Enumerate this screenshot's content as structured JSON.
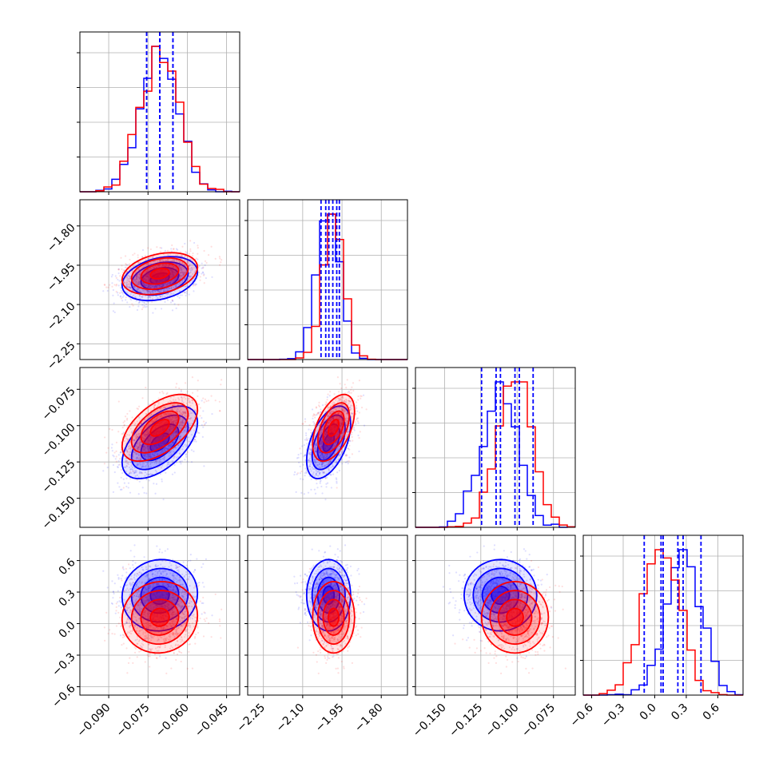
{
  "colors": {
    "series_a": "#0000ff",
    "series_b": "#ff0000",
    "grid": "#b0b0b0",
    "frame": "#000000"
  },
  "chart_data": {
    "type": "corner",
    "title": "",
    "parameters": [
      "",
      "",
      "",
      ""
    ],
    "ranges": [
      [
        -0.101,
        -0.04
      ],
      [
        -2.31,
        -1.7
      ],
      [
        -0.17,
        -0.06
      ],
      [
        -0.68,
        0.84
      ]
    ],
    "x_ticks": [
      {
        "values": [
          -0.09,
          -0.075,
          -0.06,
          -0.045
        ],
        "labels": [
          "−0.090",
          "−0.075",
          "−0.060",
          "−0.045"
        ]
      },
      {
        "values": [
          -2.25,
          -2.1,
          -1.95,
          -1.8
        ],
        "labels": [
          "−2.25",
          "−2.10",
          "−1.95",
          "−1.80"
        ]
      },
      {
        "values": [
          -0.15,
          -0.125,
          -0.1,
          -0.075
        ],
        "labels": [
          "−0.150",
          "−0.125",
          "−0.100",
          "−0.075"
        ]
      },
      {
        "values": [
          -0.6,
          -0.3,
          0.0,
          0.3,
          0.6
        ],
        "labels": [
          "−0.6",
          "−0.3",
          "0.0",
          "0.3",
          "0.6"
        ]
      }
    ],
    "y_ticks": [
      null,
      {
        "values": [
          -1.8,
          -1.95,
          -2.1,
          -2.25
        ],
        "labels": [
          "−1.80",
          "−1.95",
          "−2.10",
          "−2.25"
        ]
      },
      {
        "values": [
          -0.075,
          -0.1,
          -0.125,
          -0.15
        ],
        "labels": [
          "−0.075",
          "−0.100",
          "−0.125",
          "−0.150"
        ]
      },
      {
        "values": [
          0.6,
          0.3,
          0.0,
          -0.3,
          -0.6
        ],
        "labels": [
          "0.6",
          "0.3",
          "0.0",
          "−0.3",
          "−0.6"
        ]
      }
    ],
    "grid": true,
    "series": [
      {
        "color": "#0000ff",
        "means": [
          -0.0705,
          -2.001,
          -0.1115,
          0.27
        ],
        "sds": [
          0.0072,
          0.042,
          0.0125,
          0.17
        ],
        "corr": [
          [
            1,
            0.3,
            0.55,
            0.05
          ],
          [
            0.3,
            1,
            0.5,
            0.0
          ],
          [
            0.55,
            0.5,
            1,
            0.0
          ],
          [
            0.05,
            0.0,
            0.0,
            1
          ]
        ],
        "quantiles": [
          [
            -0.0755,
            -0.0705,
            -0.0655
          ],
          [
            -2.03,
            -2.0,
            -1.97
          ],
          [
            -0.1245,
            -0.1115,
            -0.0985
          ],
          [
            0.08,
            0.27,
            0.44
          ]
        ]
      },
      {
        "color": "#ff0000",
        "means": [
          -0.0705,
          -1.982,
          -0.1015,
          0.06
        ],
        "sds": [
          0.0072,
          0.04,
          0.0115,
          0.17
        ],
        "corr": [
          [
            1,
            0.3,
            0.55,
            0.05
          ],
          [
            0.3,
            1,
            0.5,
            0.0
          ],
          [
            0.55,
            0.5,
            1,
            0.0
          ],
          [
            0.05,
            0.0,
            0.0,
            1
          ]
        ],
        "quantiles": [
          [
            -0.0755,
            -0.0705,
            -0.0655
          ],
          [
            -2.012,
            -1.985,
            -1.96
          ],
          [
            -0.1145,
            -0.1015,
            -0.089
          ],
          [
            -0.1,
            0.06,
            0.22
          ]
        ]
      }
    ],
    "contour_levels_sigma": [
      0.5,
      1.0,
      1.5,
      2.0
    ]
  }
}
